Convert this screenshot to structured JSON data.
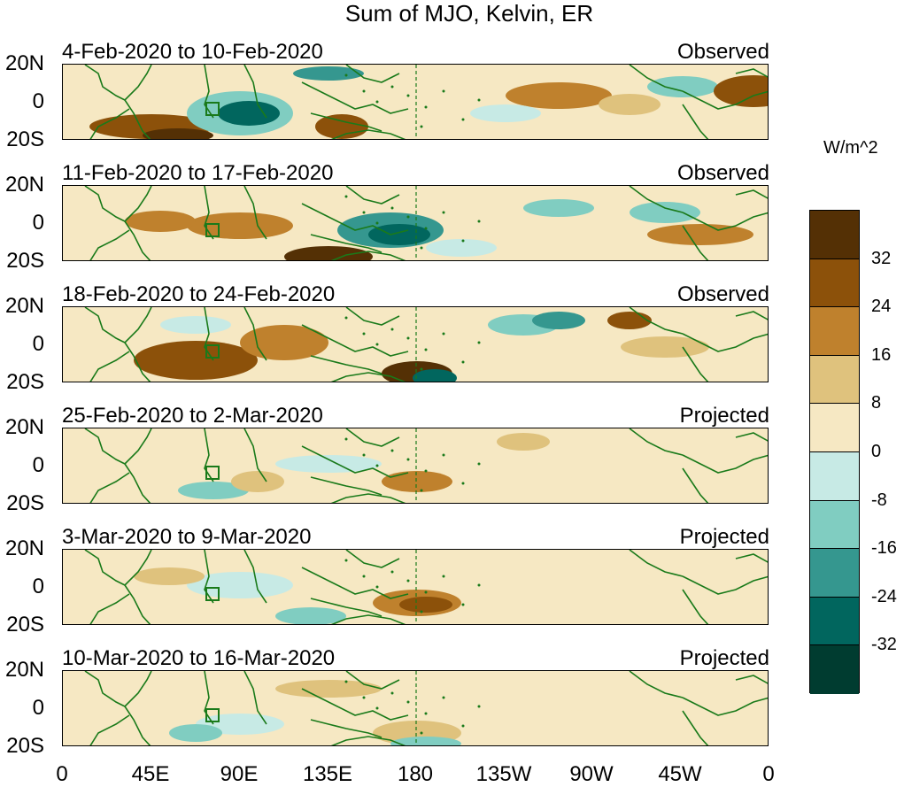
{
  "title": "Sum of MJO, Kelvin, ER",
  "panels": [
    {
      "date_range": "4-Feb-2020 to 10-Feb-2020",
      "status": "Observed"
    },
    {
      "date_range": "11-Feb-2020 to 17-Feb-2020",
      "status": "Observed"
    },
    {
      "date_range": "18-Feb-2020 to 24-Feb-2020",
      "status": "Observed"
    },
    {
      "date_range": "25-Feb-2020 to 2-Mar-2020",
      "status": "Projected"
    },
    {
      "date_range": "3-Mar-2020 to 9-Mar-2020",
      "status": "Projected"
    },
    {
      "date_range": "10-Mar-2020 to 16-Mar-2020",
      "status": "Projected"
    }
  ],
  "lat_labels": [
    "20N",
    "0",
    "20S"
  ],
  "lon_labels": [
    "0",
    "45E",
    "90E",
    "135E",
    "180",
    "135W",
    "90W",
    "45W",
    "0"
  ],
  "colorbar": {
    "unit": "W/m^2",
    "ticks": [
      "32",
      "24",
      "16",
      "8",
      "0",
      "-8",
      "-16",
      "-24",
      "-32"
    ],
    "colors": [
      "#543005",
      "#8c510a",
      "#bf812d",
      "#dfc27d",
      "#f6e8c3",
      "#c7eae5",
      "#80cdc1",
      "#35978f",
      "#01665e",
      "#003c30"
    ]
  },
  "colors": {
    "land_outline": "#1a7a1a",
    "date_line": "#1a7a1a"
  }
}
